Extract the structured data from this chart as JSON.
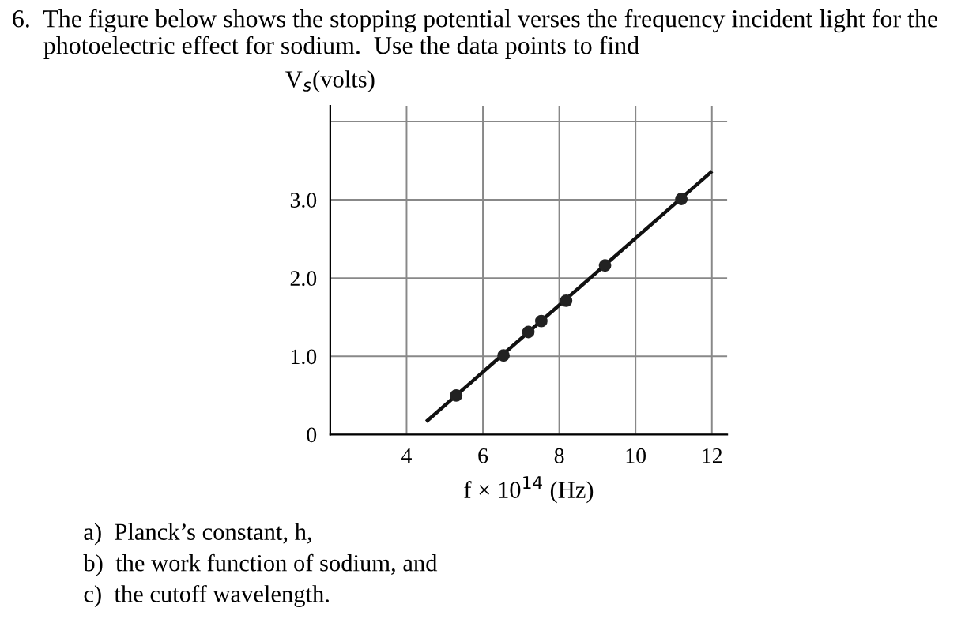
{
  "chart_data": {
    "type": "scatter",
    "title": "6.  The figure below shows the stopping potential verses the frequency incident light for the\n     photoelectric effect for sodium.  Use the data points to find",
    "ylabel": "V$_{s}$(volts)",
    "xlabel": "f × 10$^{14}$ (Hz)",
    "annotations": [
      "a)  Planck’s constant, h,",
      "b)  the work function of sodium, and",
      "c)  the cutoff wavelength."
    ],
    "xlim": [
      2,
      12.4
    ],
    "ylim": [
      0,
      4.2
    ],
    "xticks": [
      {
        "value": 2,
        "label": null
      },
      4,
      6,
      8,
      10,
      12
    ],
    "yticks": [
      {
        "value": 0,
        "label": "0"
      },
      {
        "value": 1,
        "label": "1.0"
      },
      {
        "value": 2,
        "label": "2.0"
      },
      {
        "value": 3,
        "label": "3.0"
      },
      {
        "value": 4,
        "label": null
      }
    ],
    "grid": true,
    "series": [
      {
        "marker": "circle",
        "color": "#222222",
        "x": [
          5.3,
          6.54,
          7.19,
          7.53,
          8.18,
          9.2,
          11.2
        ],
        "values": [
          0.5,
          1.01,
          1.31,
          1.45,
          1.71,
          2.16,
          3.01
        ]
      },
      {
        "type": "line",
        "color": "#111111",
        "x": [
          4.55,
          11.97
        ],
        "values": [
          0.18,
          3.35
        ]
      }
    ]
  }
}
